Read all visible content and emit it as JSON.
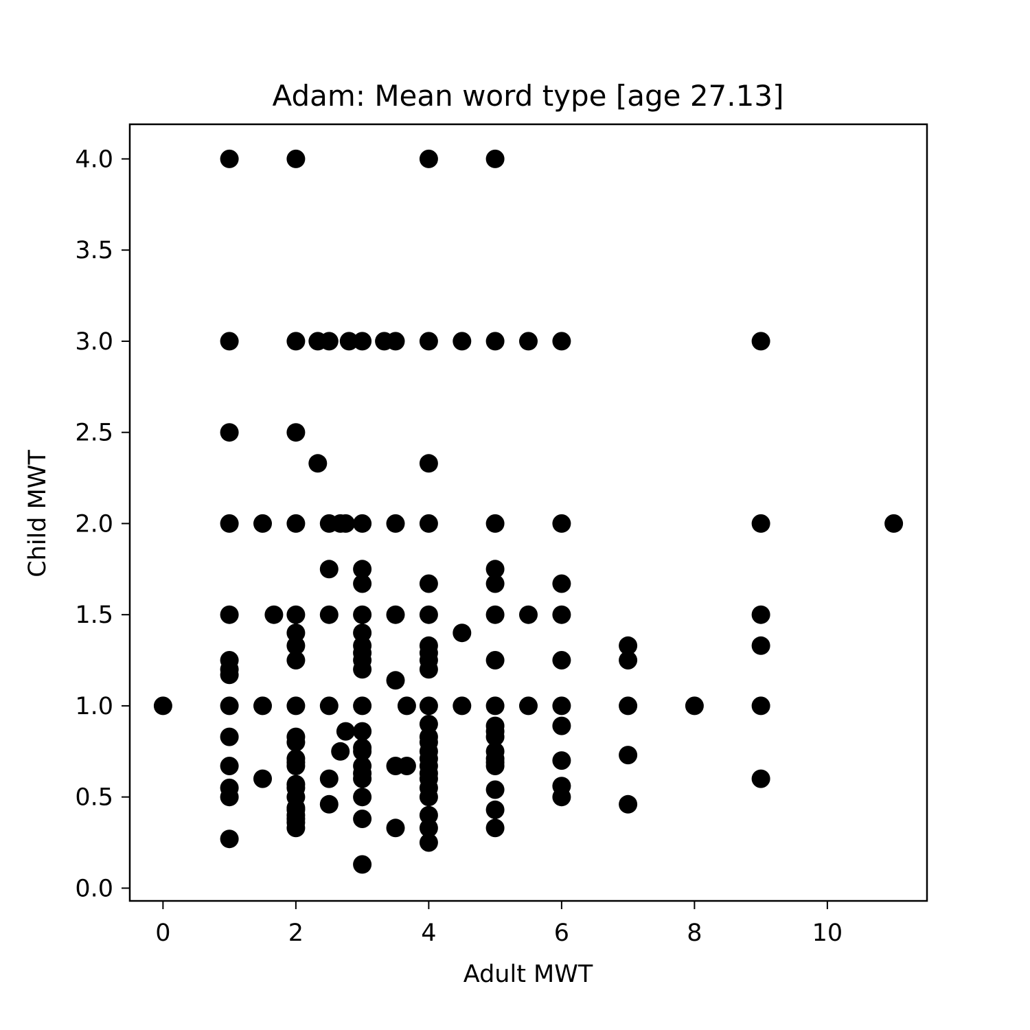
{
  "chart_data": {
    "type": "scatter",
    "title": "Adam: Mean word type [age 27.13]",
    "xlabel": "Adult MWT",
    "ylabel": "Child MWT",
    "xlim": [
      -0.5,
      11.5
    ],
    "ylim": [
      -0.07,
      4.19
    ],
    "x_ticks": [
      0,
      2,
      4,
      6,
      8,
      10
    ],
    "x_tick_labels": [
      "0",
      "2",
      "4",
      "6",
      "8",
      "10"
    ],
    "y_ticks": [
      0.0,
      0.5,
      1.0,
      1.5,
      2.0,
      2.5,
      3.0,
      3.5,
      4.0
    ],
    "y_tick_labels": [
      "0.0",
      "0.5",
      "1.0",
      "1.5",
      "2.0",
      "2.5",
      "3.0",
      "3.5",
      "4.0"
    ],
    "grid": false,
    "marker_color": "#000000",
    "points": [
      {
        "x": 1,
        "y": 4.0
      },
      {
        "x": 2,
        "y": 4.0
      },
      {
        "x": 4,
        "y": 4.0
      },
      {
        "x": 5,
        "y": 4.0
      },
      {
        "x": 1,
        "y": 3.0
      },
      {
        "x": 2,
        "y": 3.0
      },
      {
        "x": 2.33,
        "y": 3.0
      },
      {
        "x": 2.5,
        "y": 3.0
      },
      {
        "x": 2.8,
        "y": 3.0
      },
      {
        "x": 3,
        "y": 3.0
      },
      {
        "x": 3.33,
        "y": 3.0
      },
      {
        "x": 3.5,
        "y": 3.0
      },
      {
        "x": 4,
        "y": 3.0
      },
      {
        "x": 4.5,
        "y": 3.0
      },
      {
        "x": 5,
        "y": 3.0
      },
      {
        "x": 5.5,
        "y": 3.0
      },
      {
        "x": 6,
        "y": 3.0
      },
      {
        "x": 9,
        "y": 3.0
      },
      {
        "x": 1,
        "y": 2.5
      },
      {
        "x": 2,
        "y": 2.5
      },
      {
        "x": 2.33,
        "y": 2.33
      },
      {
        "x": 4,
        "y": 2.33
      },
      {
        "x": 1,
        "y": 2.0
      },
      {
        "x": 1.5,
        "y": 2.0
      },
      {
        "x": 2,
        "y": 2.0
      },
      {
        "x": 2.5,
        "y": 2.0
      },
      {
        "x": 2.67,
        "y": 2.0
      },
      {
        "x": 2.75,
        "y": 2.0
      },
      {
        "x": 3,
        "y": 2.0
      },
      {
        "x": 3.5,
        "y": 2.0
      },
      {
        "x": 4,
        "y": 2.0
      },
      {
        "x": 5,
        "y": 2.0
      },
      {
        "x": 6,
        "y": 2.0
      },
      {
        "x": 9,
        "y": 2.0
      },
      {
        "x": 11,
        "y": 2.0
      },
      {
        "x": 2.5,
        "y": 1.75
      },
      {
        "x": 3,
        "y": 1.75
      },
      {
        "x": 5,
        "y": 1.75
      },
      {
        "x": 3,
        "y": 1.67
      },
      {
        "x": 4,
        "y": 1.67
      },
      {
        "x": 5,
        "y": 1.67
      },
      {
        "x": 6,
        "y": 1.67
      },
      {
        "x": 1,
        "y": 1.5
      },
      {
        "x": 1.67,
        "y": 1.5
      },
      {
        "x": 2,
        "y": 1.5
      },
      {
        "x": 2.5,
        "y": 1.5
      },
      {
        "x": 3,
        "y": 1.5
      },
      {
        "x": 3.5,
        "y": 1.5
      },
      {
        "x": 4,
        "y": 1.5
      },
      {
        "x": 5,
        "y": 1.5
      },
      {
        "x": 5.5,
        "y": 1.5
      },
      {
        "x": 6,
        "y": 1.5
      },
      {
        "x": 9,
        "y": 1.5
      },
      {
        "x": 2,
        "y": 1.4
      },
      {
        "x": 3,
        "y": 1.4
      },
      {
        "x": 4.5,
        "y": 1.4
      },
      {
        "x": 2,
        "y": 1.33
      },
      {
        "x": 3,
        "y": 1.33
      },
      {
        "x": 4,
        "y": 1.33
      },
      {
        "x": 7,
        "y": 1.33
      },
      {
        "x": 9,
        "y": 1.33
      },
      {
        "x": 3,
        "y": 1.29
      },
      {
        "x": 4,
        "y": 1.29
      },
      {
        "x": 1,
        "y": 1.25
      },
      {
        "x": 2,
        "y": 1.25
      },
      {
        "x": 3,
        "y": 1.25
      },
      {
        "x": 4,
        "y": 1.25
      },
      {
        "x": 5,
        "y": 1.25
      },
      {
        "x": 6,
        "y": 1.25
      },
      {
        "x": 7,
        "y": 1.25
      },
      {
        "x": 1,
        "y": 1.2
      },
      {
        "x": 3,
        "y": 1.2
      },
      {
        "x": 4,
        "y": 1.2
      },
      {
        "x": 1,
        "y": 1.17
      },
      {
        "x": 3.5,
        "y": 1.14
      },
      {
        "x": 0,
        "y": 1.0
      },
      {
        "x": 1,
        "y": 1.0
      },
      {
        "x": 1.5,
        "y": 1.0
      },
      {
        "x": 2,
        "y": 1.0
      },
      {
        "x": 2.5,
        "y": 1.0
      },
      {
        "x": 3,
        "y": 1.0
      },
      {
        "x": 3.67,
        "y": 1.0
      },
      {
        "x": 4,
        "y": 1.0
      },
      {
        "x": 4.5,
        "y": 1.0
      },
      {
        "x": 5,
        "y": 1.0
      },
      {
        "x": 5.5,
        "y": 1.0
      },
      {
        "x": 6,
        "y": 1.0
      },
      {
        "x": 7,
        "y": 1.0
      },
      {
        "x": 8,
        "y": 1.0
      },
      {
        "x": 9,
        "y": 1.0
      },
      {
        "x": 4,
        "y": 0.9
      },
      {
        "x": 5,
        "y": 0.89
      },
      {
        "x": 6,
        "y": 0.89
      },
      {
        "x": 2.75,
        "y": 0.86
      },
      {
        "x": 3,
        "y": 0.86
      },
      {
        "x": 5,
        "y": 0.86
      },
      {
        "x": 1,
        "y": 0.83
      },
      {
        "x": 2,
        "y": 0.83
      },
      {
        "x": 4,
        "y": 0.83
      },
      {
        "x": 5,
        "y": 0.83
      },
      {
        "x": 2,
        "y": 0.8
      },
      {
        "x": 4,
        "y": 0.8
      },
      {
        "x": 3,
        "y": 0.77
      },
      {
        "x": 2.67,
        "y": 0.75
      },
      {
        "x": 3,
        "y": 0.75
      },
      {
        "x": 4,
        "y": 0.75
      },
      {
        "x": 5,
        "y": 0.75
      },
      {
        "x": 2,
        "y": 0.71
      },
      {
        "x": 4,
        "y": 0.71
      },
      {
        "x": 5,
        "y": 0.71
      },
      {
        "x": 7,
        "y": 0.73
      },
      {
        "x": 6,
        "y": 0.7
      },
      {
        "x": 2,
        "y": 0.69
      },
      {
        "x": 5,
        "y": 0.69
      },
      {
        "x": 1,
        "y": 0.67
      },
      {
        "x": 2,
        "y": 0.67
      },
      {
        "x": 3,
        "y": 0.67
      },
      {
        "x": 3.5,
        "y": 0.67
      },
      {
        "x": 3.67,
        "y": 0.67
      },
      {
        "x": 4,
        "y": 0.67
      },
      {
        "x": 5,
        "y": 0.67
      },
      {
        "x": 3,
        "y": 0.63
      },
      {
        "x": 4,
        "y": 0.63
      },
      {
        "x": 1.5,
        "y": 0.6
      },
      {
        "x": 2.5,
        "y": 0.6
      },
      {
        "x": 3,
        "y": 0.6
      },
      {
        "x": 4,
        "y": 0.6
      },
      {
        "x": 9,
        "y": 0.6
      },
      {
        "x": 2,
        "y": 0.57
      },
      {
        "x": 6,
        "y": 0.56
      },
      {
        "x": 1,
        "y": 0.55
      },
      {
        "x": 2,
        "y": 0.55
      },
      {
        "x": 4,
        "y": 0.55
      },
      {
        "x": 5,
        "y": 0.54
      },
      {
        "x": 1,
        "y": 0.5
      },
      {
        "x": 2,
        "y": 0.5
      },
      {
        "x": 3,
        "y": 0.5
      },
      {
        "x": 4,
        "y": 0.5
      },
      {
        "x": 6,
        "y": 0.5
      },
      {
        "x": 2.5,
        "y": 0.46
      },
      {
        "x": 7,
        "y": 0.46
      },
      {
        "x": 2,
        "y": 0.44
      },
      {
        "x": 2,
        "y": 0.43
      },
      {
        "x": 5,
        "y": 0.43
      },
      {
        "x": 2,
        "y": 0.4
      },
      {
        "x": 4,
        "y": 0.4
      },
      {
        "x": 2,
        "y": 0.38
      },
      {
        "x": 3,
        "y": 0.38
      },
      {
        "x": 2,
        "y": 0.36
      },
      {
        "x": 2,
        "y": 0.33
      },
      {
        "x": 3.5,
        "y": 0.33
      },
      {
        "x": 4,
        "y": 0.33
      },
      {
        "x": 5,
        "y": 0.33
      },
      {
        "x": 1,
        "y": 0.27
      },
      {
        "x": 4,
        "y": 0.25
      },
      {
        "x": 3,
        "y": 0.13
      }
    ]
  }
}
